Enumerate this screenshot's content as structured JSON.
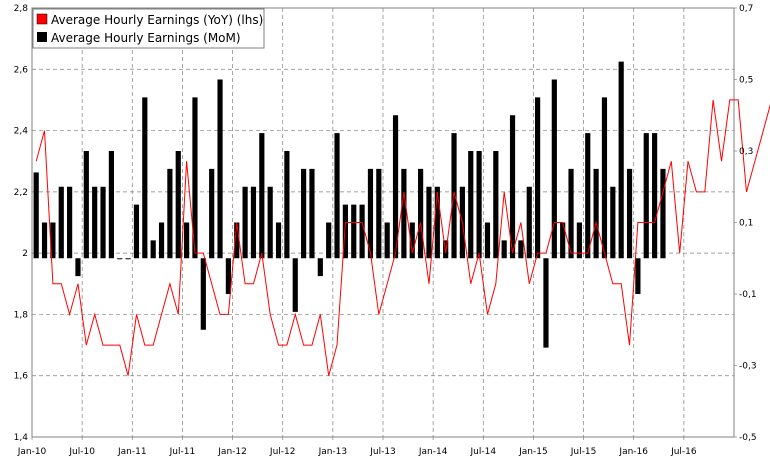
{
  "chart_data": {
    "type": "bar+line",
    "title": "",
    "legend": [
      {
        "name": "Average Hourly Earnings (YoY) (lhs)",
        "color": "#ff0000",
        "kind": "line"
      },
      {
        "name": "Average Hourly Earnings (MoM)",
        "color": "#000000",
        "kind": "bar"
      }
    ],
    "legend_position": "top-left",
    "x_tick_labels": [
      "Jan-10",
      "Jul-10",
      "Jan-11",
      "Jul-11",
      "Jan-12",
      "Jul-12",
      "Jan-13",
      "Jul-13",
      "Jan-14",
      "Jul-14",
      "Jan-15",
      "Jul-15",
      "Jan-16",
      "Jul-16"
    ],
    "y_left": {
      "min": 1.4,
      "max": 2.8,
      "ticks": [
        "1,4",
        "1,6",
        "1,8",
        "2",
        "2,2",
        "2,4",
        "2,6",
        "2,8"
      ]
    },
    "y_right": {
      "min": -0.5,
      "max": 0.7,
      "ticks": [
        "-0,5",
        "-0,3",
        "-0,1",
        "0,1",
        "0,3",
        "0,5",
        "0,7"
      ]
    },
    "grid": true,
    "series": [
      {
        "name": "Average Hourly Earnings (YoY) (lhs)",
        "axis": "left",
        "type": "line",
        "values": [
          2.3,
          2.4,
          1.9,
          1.9,
          1.8,
          1.9,
          1.7,
          1.8,
          1.7,
          1.7,
          1.7,
          1.6,
          1.8,
          1.7,
          1.7,
          1.8,
          1.9,
          1.8,
          2.3,
          2.0,
          2.0,
          1.9,
          1.8,
          1.8,
          2.1,
          1.9,
          1.9,
          2.0,
          1.8,
          1.7,
          1.7,
          1.8,
          1.7,
          1.7,
          1.8,
          1.6,
          1.7,
          2.1,
          2.1,
          2.1,
          2.0,
          1.8,
          1.9,
          2.0,
          2.2,
          2.0,
          2.1,
          1.9,
          2.2,
          2.0,
          2.2,
          2.1,
          1.9,
          2.0,
          1.8,
          1.9,
          2.2,
          2.0,
          2.1,
          1.9,
          2.0,
          2.0,
          2.1,
          2.1,
          2.0,
          2.0,
          2.0,
          2.1,
          2.0,
          1.9,
          1.9,
          1.7,
          2.1,
          2.1,
          2.1,
          2.2,
          2.3,
          2.0,
          2.3,
          2.2,
          2.2,
          2.5,
          2.3,
          2.5,
          2.5,
          2.2,
          2.3,
          2.4,
          2.5,
          2.5
        ]
      },
      {
        "name": "Average Hourly Earnings (MoM)",
        "axis": "right",
        "type": "bar",
        "values": [
          0.24,
          0.1,
          0.1,
          0.2,
          0.2,
          -0.05,
          0.3,
          0.2,
          0.2,
          0.3,
          0,
          0,
          0.15,
          0.45,
          0.05,
          0.1,
          0.25,
          0.3,
          0.1,
          0.45,
          -0.2,
          0.25,
          0.5,
          -0.1,
          0.1,
          0.2,
          0.2,
          0.35,
          0.2,
          0.1,
          0.3,
          -0.15,
          0.25,
          0.25,
          -0.05,
          0.1,
          0.35,
          0.15,
          0.15,
          0.15,
          0.25,
          0.25,
          0.1,
          0.4,
          0.25,
          0.1,
          0.25,
          0.2,
          0.2,
          0.05,
          0.35,
          0.2,
          0.3,
          0.3,
          0.1,
          0.3,
          0.05,
          0.4,
          0.05,
          0.2,
          0.45,
          -0.25,
          0.5,
          0.1,
          0.25,
          0.1,
          0.35,
          0.25,
          0.45,
          0.2,
          0.55,
          0.25,
          -0.1,
          0.35,
          0.35,
          0.25
        ]
      }
    ]
  }
}
